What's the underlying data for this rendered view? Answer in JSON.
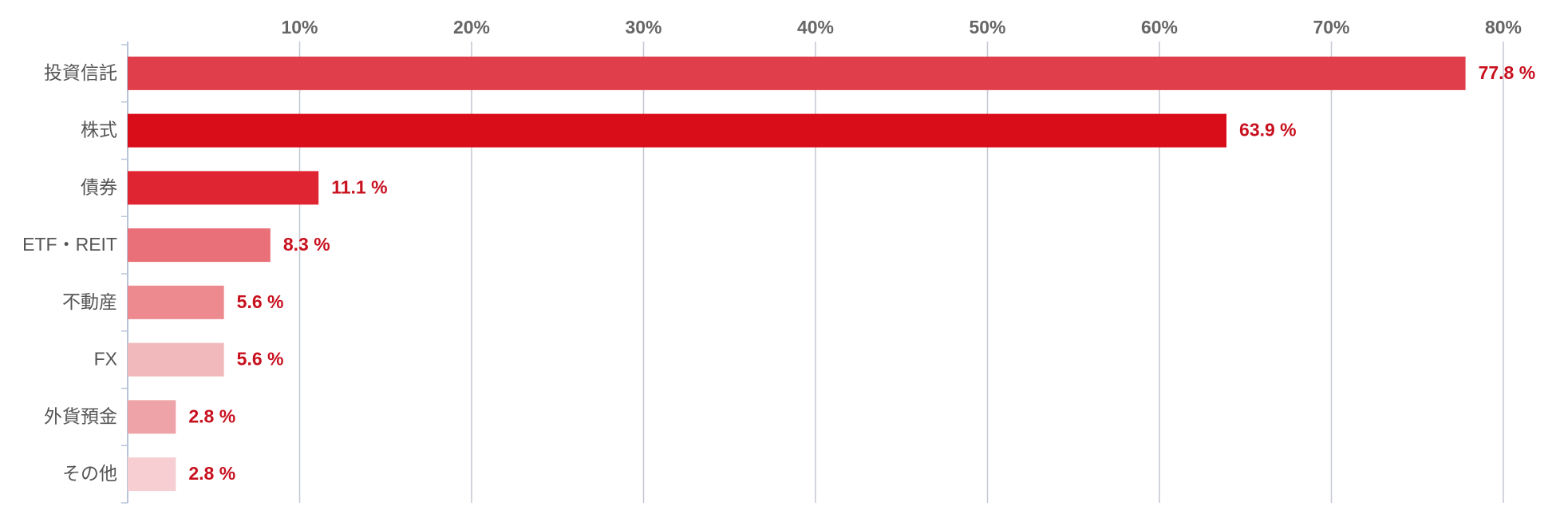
{
  "chart_data": {
    "type": "hbar",
    "categories": [
      "投資信託",
      "株式",
      "債券",
      "ETF・REIT",
      "不動産",
      "FX",
      "外貨預金",
      "その他"
    ],
    "values": [
      77.8,
      63.9,
      11.1,
      8.3,
      5.6,
      5.6,
      2.8,
      2.8
    ],
    "value_labels": [
      "77.8 %",
      "63.9 %",
      "11.1 %",
      "8.3 %",
      "5.6 %",
      "5.6 %",
      "2.8 %",
      "2.8 %"
    ],
    "colors": [
      "#e03e4a",
      "#d90d1a",
      "#df2531",
      "#e97079",
      "#ec8a90",
      "#f2b9bc",
      "#eea3a8",
      "#f7ced2"
    ],
    "xlim": [
      0,
      80
    ],
    "xticks": [
      {
        "value": 10,
        "label": "10%"
      },
      {
        "value": 20,
        "label": "20%"
      },
      {
        "value": 30,
        "label": "30%"
      },
      {
        "value": 40,
        "label": "40%"
      },
      {
        "value": 50,
        "label": "50%"
      },
      {
        "value": 60,
        "label": "60%"
      },
      {
        "value": 70,
        "label": "70%"
      },
      {
        "value": 80,
        "label": "80%"
      }
    ],
    "grid": true
  }
}
